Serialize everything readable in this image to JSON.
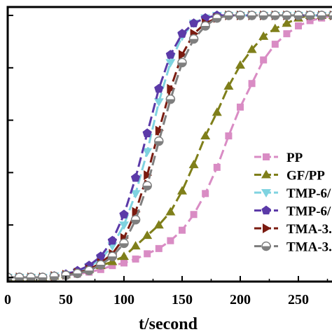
{
  "chart_data": {
    "type": "line",
    "title": "",
    "xlabel": "t/second",
    "ylabel": "",
    "xlim": [
      0,
      280
    ],
    "ylim": [
      0,
      1.05
    ],
    "x_ticks": [
      0,
      50,
      100,
      150,
      200,
      250
    ],
    "x_tick_labels": [
      "0",
      "50",
      "100",
      "150",
      "200",
      "250"
    ],
    "y_ticks": [
      0,
      0.2,
      0.4,
      0.6,
      0.8,
      1.0
    ],
    "grid": false,
    "legend_position": "right",
    "series": [
      {
        "name": "PP",
        "color": "#d98cc4",
        "marker": "square",
        "x": [
          0,
          10,
          20,
          30,
          40,
          50,
          60,
          70,
          80,
          90,
          100,
          110,
          120,
          130,
          140,
          150,
          160,
          170,
          180,
          190,
          200,
          210,
          220,
          230,
          240,
          250,
          260,
          270,
          280
        ],
        "y": [
          0,
          0,
          0,
          0,
          0.004,
          0.008,
          0.012,
          0.02,
          0.03,
          0.045,
          0.055,
          0.07,
          0.09,
          0.11,
          0.14,
          0.18,
          0.24,
          0.32,
          0.42,
          0.54,
          0.65,
          0.74,
          0.83,
          0.89,
          0.93,
          0.96,
          0.98,
          0.99,
          1.0
        ]
      },
      {
        "name": "GF/PP",
        "color": "#7f7f1a",
        "marker": "triangle-up",
        "x": [
          0,
          10,
          20,
          30,
          40,
          50,
          60,
          70,
          80,
          90,
          100,
          110,
          120,
          130,
          140,
          150,
          160,
          170,
          180,
          190,
          200,
          210,
          220,
          230,
          240,
          250,
          260,
          270,
          280
        ],
        "y": [
          0,
          0,
          0,
          0,
          0.005,
          0.01,
          0.02,
          0.03,
          0.045,
          0.06,
          0.08,
          0.12,
          0.16,
          0.2,
          0.25,
          0.33,
          0.43,
          0.54,
          0.63,
          0.73,
          0.81,
          0.87,
          0.92,
          0.95,
          0.97,
          0.99,
          1.0,
          1.0,
          1.0
        ]
      },
      {
        "name": "TMP-6/",
        "color": "#7fd3e0",
        "marker": "triangle-down",
        "x": [
          0,
          10,
          20,
          30,
          40,
          50,
          60,
          70,
          80,
          90,
          100,
          110,
          120,
          130,
          140,
          150,
          160,
          170,
          180,
          190,
          200,
          210,
          220,
          230,
          240,
          250,
          260,
          270,
          280
        ],
        "y": [
          0,
          0,
          0,
          0,
          0.005,
          0.01,
          0.02,
          0.04,
          0.07,
          0.12,
          0.2,
          0.32,
          0.48,
          0.67,
          0.82,
          0.92,
          0.97,
          0.99,
          1.0,
          1.0,
          1.0,
          1.0,
          1.0,
          1.0,
          1.0,
          1.0,
          1.0,
          1.0,
          1.0
        ]
      },
      {
        "name": "TMP-6/",
        "color": "#5b3aa8",
        "marker": "pentagon",
        "x": [
          0,
          10,
          20,
          30,
          40,
          50,
          60,
          70,
          80,
          90,
          100,
          110,
          120,
          130,
          140,
          150,
          160,
          170,
          180,
          190,
          200,
          210,
          220,
          230,
          240,
          250,
          260,
          270,
          280
        ],
        "y": [
          0,
          0,
          0,
          0,
          0.005,
          0.012,
          0.025,
          0.045,
          0.08,
          0.14,
          0.24,
          0.38,
          0.55,
          0.72,
          0.85,
          0.93,
          0.97,
          0.99,
          1.0,
          1.0,
          1.0,
          1.0,
          1.0,
          1.0,
          1.0,
          1.0,
          1.0,
          1.0,
          1.0
        ]
      },
      {
        "name": "TMA-3.",
        "color": "#7a1b10",
        "marker": "triangle-right",
        "x": [
          0,
          10,
          20,
          30,
          40,
          50,
          60,
          70,
          80,
          90,
          100,
          110,
          120,
          130,
          140,
          150,
          160,
          170,
          180,
          190,
          200,
          210,
          220,
          230,
          240,
          250,
          260,
          270,
          280
        ],
        "y": [
          0,
          0,
          0,
          0,
          0.005,
          0.01,
          0.018,
          0.03,
          0.055,
          0.09,
          0.15,
          0.25,
          0.39,
          0.56,
          0.72,
          0.85,
          0.93,
          0.97,
          0.99,
          1.0,
          1.0,
          1.0,
          1.0,
          1.0,
          1.0,
          1.0,
          1.0,
          1.0,
          1.0
        ]
      },
      {
        "name": "TMA-3.",
        "color": "#7f7f7f",
        "marker": "circle-half",
        "x": [
          0,
          10,
          20,
          30,
          40,
          50,
          60,
          70,
          80,
          90,
          100,
          110,
          120,
          130,
          140,
          150,
          160,
          170,
          180,
          190,
          200,
          210,
          220,
          230,
          240,
          250,
          260,
          270,
          280
        ],
        "y": [
          0,
          0,
          0,
          0,
          0.004,
          0.008,
          0.015,
          0.026,
          0.048,
          0.08,
          0.13,
          0.22,
          0.35,
          0.52,
          0.68,
          0.82,
          0.91,
          0.96,
          0.99,
          1.0,
          1.0,
          1.0,
          1.0,
          1.0,
          1.0,
          1.0,
          1.0,
          1.0,
          1.0
        ]
      }
    ]
  }
}
